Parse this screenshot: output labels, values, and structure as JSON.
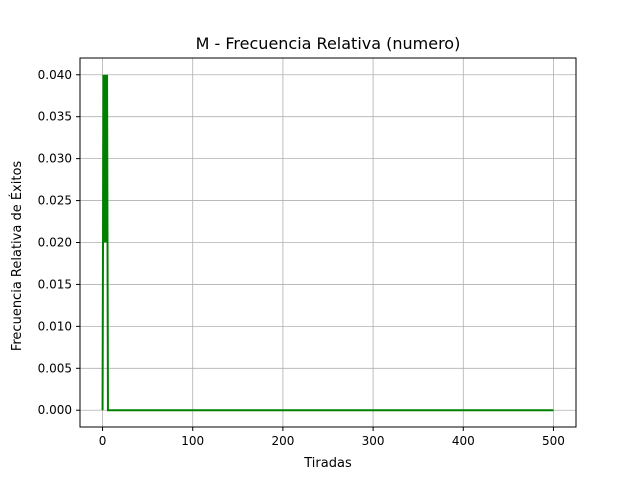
{
  "chart_data": {
    "type": "line",
    "title": "M - Frecuencia Relativa (numero)",
    "xlabel": "Tiradas",
    "ylabel": "Frecuencia Relativa de Éxitos",
    "xlim": [
      -25,
      525
    ],
    "ylim": [
      -0.002,
      0.042
    ],
    "x_ticks": [
      0,
      100,
      200,
      300,
      400,
      500
    ],
    "x_tick_labels": [
      "0",
      "100",
      "200",
      "300",
      "400",
      "500"
    ],
    "y_ticks": [
      0.0,
      0.005,
      0.01,
      0.015,
      0.02,
      0.025,
      0.03,
      0.035,
      0.04
    ],
    "y_tick_labels": [
      "0.000",
      "0.005",
      "0.010",
      "0.015",
      "0.020",
      "0.025",
      "0.030",
      "0.035",
      "0.040"
    ],
    "grid": true,
    "legend": "none",
    "series": [
      {
        "color": "#008000",
        "x": [
          0,
          1,
          2,
          3,
          4,
          5,
          6,
          500
        ],
        "y": [
          0.0,
          0.04,
          0.02,
          0.04,
          0.02,
          0.04,
          0.0,
          0.0
        ]
      }
    ]
  }
}
